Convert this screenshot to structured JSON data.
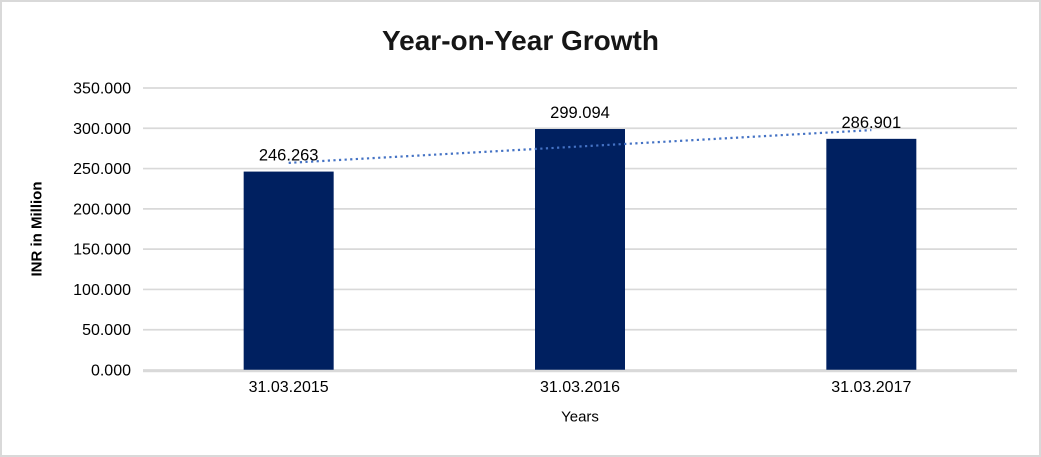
{
  "chart_data": {
    "type": "bar",
    "title": "Year-on-Year Growth",
    "categories": [
      "31.03.2015",
      "31.03.2016",
      "31.03.2017"
    ],
    "values": [
      246.263,
      299.094,
      286.901
    ],
    "data_labels": [
      "246.263",
      "299.094",
      "286.901"
    ],
    "xlabel": "Years",
    "ylabel": "INR in Million",
    "ylim": [
      0,
      350
    ],
    "y_tick_step": 50,
    "y_tick_labels": [
      "0.000",
      "50.000",
      "100.000",
      "150.000",
      "200.000",
      "250.000",
      "300.000",
      "350.000"
    ],
    "grid": true,
    "legend": false,
    "bar_color": "#002060",
    "trendline": {
      "type": "linear",
      "style": "dotted",
      "color": "#4472C4"
    },
    "colors": {
      "text": "#000000",
      "gridline": "#D9D9D9",
      "axis_line": "#D9D9D9",
      "background": "#FFFFFF",
      "border": "#D9D9D9"
    }
  }
}
